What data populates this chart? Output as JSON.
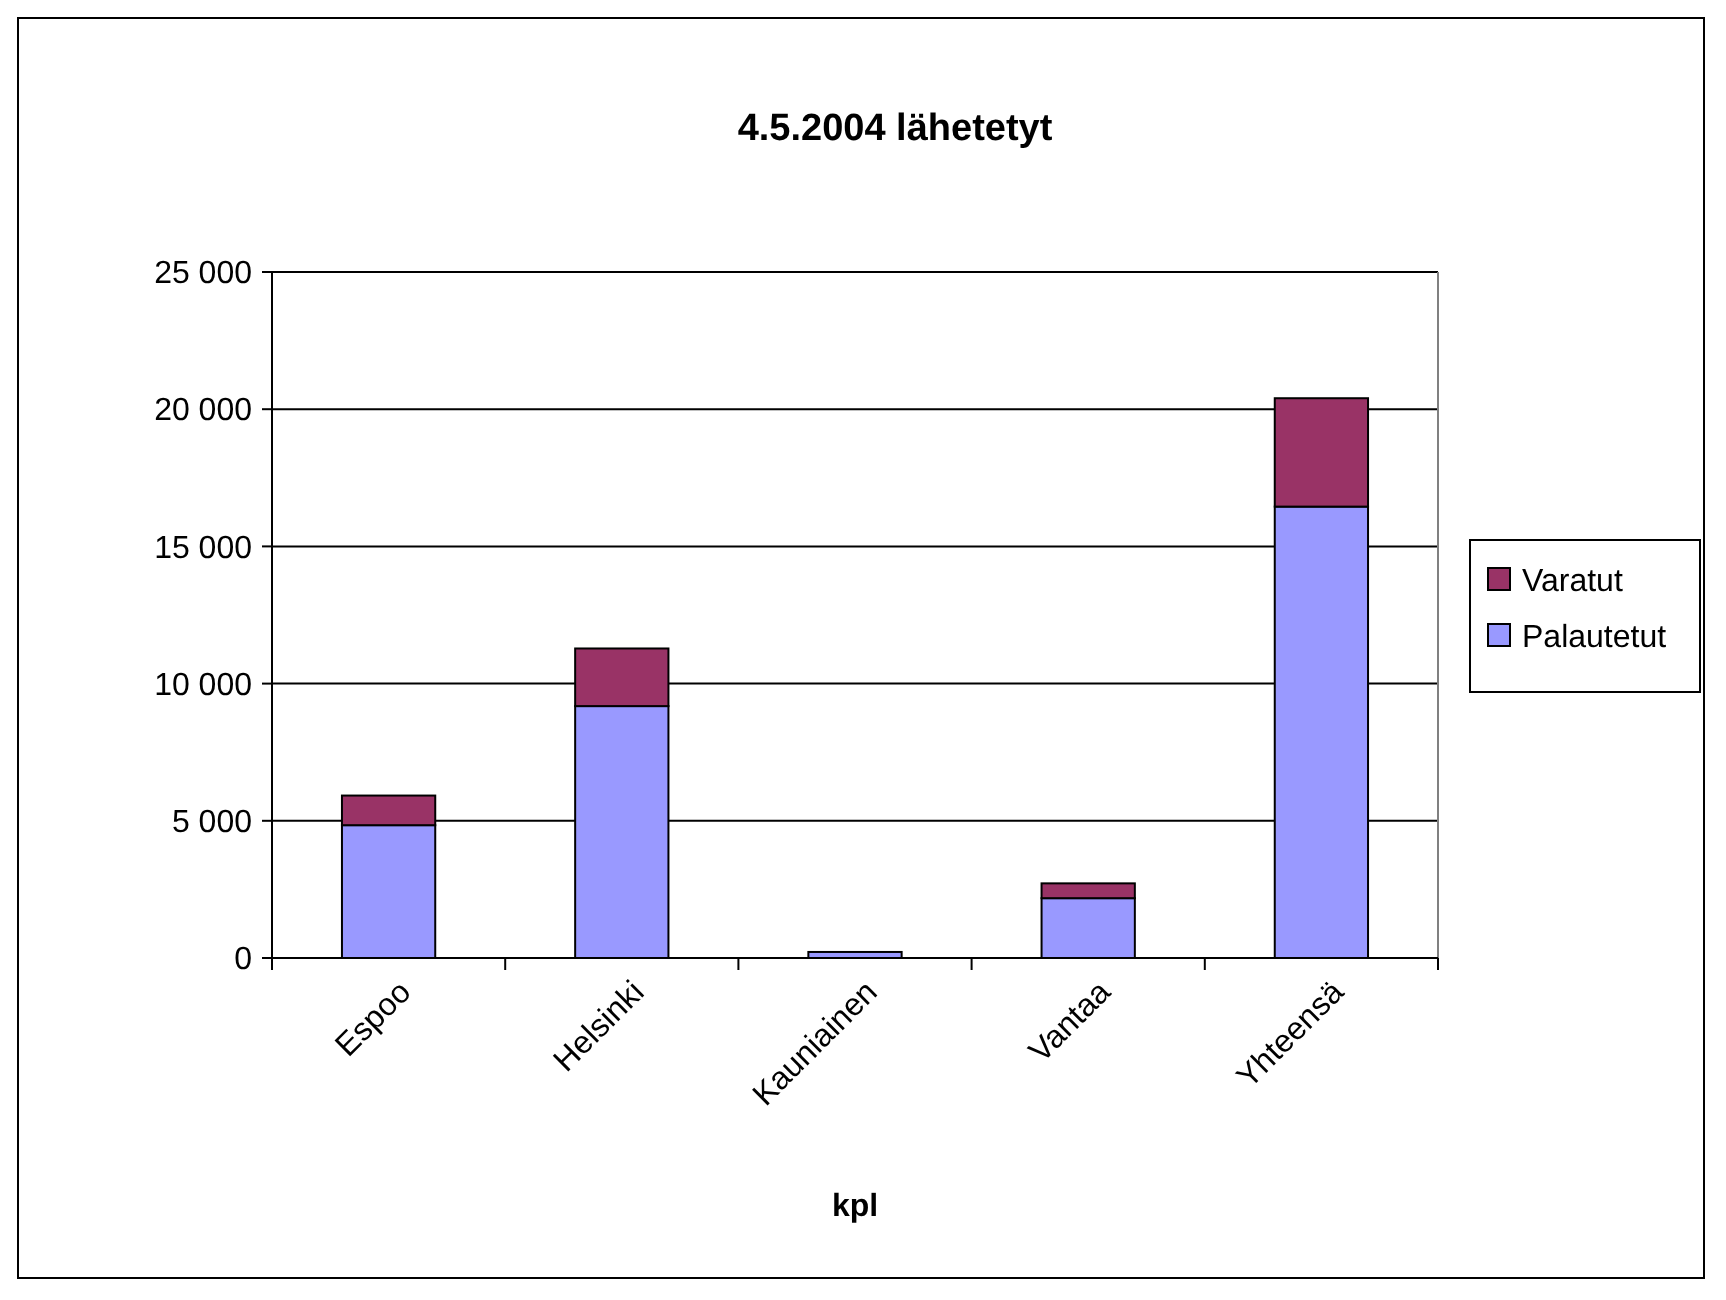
{
  "chart_data": {
    "type": "bar",
    "title": "4.5.2004 lähetetyt",
    "xlabel": "kpl",
    "categories": [
      "Espoo",
      "Helsinki",
      "Kauniainen",
      "Vantaa",
      "Yhteensä"
    ],
    "stacked": true,
    "series": [
      {
        "name": "Palautetut",
        "color": "#9999ff",
        "values": [
          4840,
          9180,
          220,
          2180,
          16450
        ]
      },
      {
        "name": "Varatut",
        "color": "#993366",
        "values": [
          1080,
          2100,
          null,
          540,
          3950
        ]
      }
    ],
    "ylim": [
      0,
      25000
    ],
    "yticks": [
      {
        "value": 0,
        "label": "0"
      },
      {
        "value": 5000,
        "label": "5 000"
      },
      {
        "value": 10000,
        "label": "10 000"
      },
      {
        "value": 15000,
        "label": "15 000"
      },
      {
        "value": 20000,
        "label": "20 000"
      },
      {
        "value": 25000,
        "label": "25 000"
      }
    ],
    "grid": "y",
    "legend": "right"
  }
}
